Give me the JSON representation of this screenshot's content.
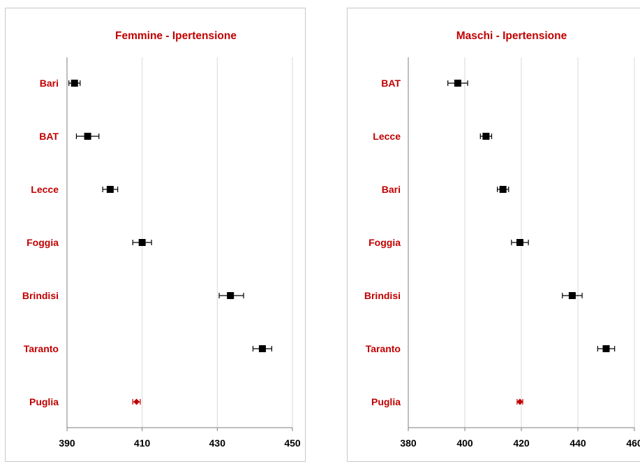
{
  "chart_data": [
    {
      "type": "scatter",
      "title": "Femmine - Ipertensione",
      "xlabel": "",
      "ylabel": "",
      "xlim": [
        390,
        450
      ],
      "xticks": [
        390,
        410,
        430,
        450
      ],
      "grid": true,
      "categories": [
        "Bari",
        "BAT",
        "Lecce",
        "Foggia",
        "Brindisi",
        "Taranto",
        "Puglia"
      ],
      "values": [
        392,
        395.5,
        401.5,
        410,
        433.5,
        442,
        408.5
      ],
      "ci_lower": [
        390.5,
        392.5,
        399.5,
        407.5,
        430.5,
        439.5,
        407.5
      ],
      "ci_upper": [
        393.5,
        398.5,
        403.5,
        412.5,
        437,
        444.5,
        409.5
      ],
      "marker_colors": [
        "#000000",
        "#000000",
        "#000000",
        "#000000",
        "#000000",
        "#000000",
        "#c00000"
      ],
      "marker_shapes": [
        "square",
        "square",
        "square",
        "square",
        "square",
        "square",
        "diamond"
      ]
    },
    {
      "type": "scatter",
      "title": "Maschi - Ipertensione",
      "xlabel": "",
      "ylabel": "",
      "xlim": [
        380,
        460
      ],
      "xticks": [
        380,
        400,
        420,
        440,
        460
      ],
      "grid": true,
      "categories": [
        "BAT",
        "Lecce",
        "Bari",
        "Foggia",
        "Brindisi",
        "Taranto",
        "Puglia"
      ],
      "values": [
        397.5,
        407.5,
        413.5,
        419.5,
        438,
        450,
        419.5
      ],
      "ci_lower": [
        394,
        405.5,
        411.5,
        416.5,
        434.5,
        447,
        418.5
      ],
      "ci_upper": [
        401,
        409.5,
        415.5,
        422.5,
        441.5,
        453,
        420.5
      ],
      "marker_colors": [
        "#000000",
        "#000000",
        "#000000",
        "#000000",
        "#000000",
        "#000000",
        "#c00000"
      ],
      "marker_shapes": [
        "square",
        "square",
        "square",
        "square",
        "square",
        "square",
        "diamond"
      ]
    }
  ]
}
